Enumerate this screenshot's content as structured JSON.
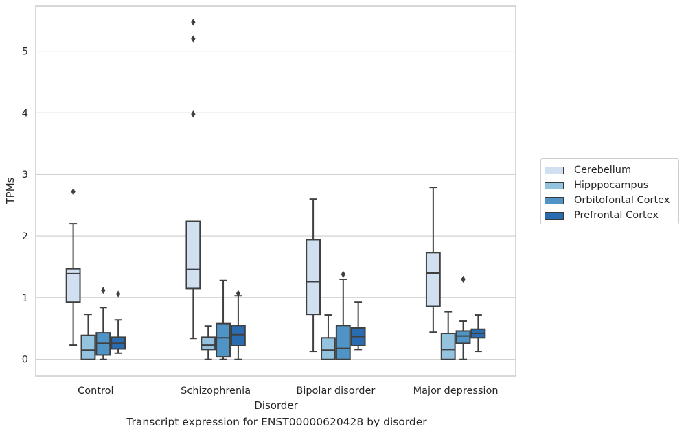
{
  "chart_data": {
    "type": "box",
    "title": "",
    "caption": "Transcript expression for ENST00000620428 by disorder",
    "xlabel": "Disorder",
    "ylabel": "TPMs",
    "ylim": [
      -0.27,
      5.73
    ],
    "yticks": [
      0,
      1,
      2,
      3,
      4,
      5
    ],
    "grid": "horizontal",
    "legend_position": "right",
    "categories": [
      "Control",
      "Schizophrenia",
      "Bipolar disorder",
      "Major depression"
    ],
    "series": [
      {
        "name": "Cerebellum",
        "color": "#d0e0f0",
        "boxes": [
          {
            "whislo": 0.23,
            "q1": 0.93,
            "med": 1.39,
            "q3": 1.47,
            "whishi": 2.2,
            "fliers": [
              2.72
            ]
          },
          {
            "whislo": 0.34,
            "q1": 1.15,
            "med": 1.46,
            "q3": 2.24,
            "whishi": 2.24,
            "fliers": [
              3.98,
              5.2,
              5.47
            ]
          },
          {
            "whislo": 0.13,
            "q1": 0.73,
            "med": 1.26,
            "q3": 1.94,
            "whishi": 2.6,
            "fliers": []
          },
          {
            "whislo": 0.44,
            "q1": 0.86,
            "med": 1.4,
            "q3": 1.73,
            "whishi": 2.79,
            "fliers": []
          }
        ]
      },
      {
        "name": "Hipppocampus",
        "color": "#93c3df",
        "boxes": [
          {
            "whislo": 0.0,
            "q1": 0.0,
            "med": 0.15,
            "q3": 0.39,
            "whishi": 0.73,
            "fliers": []
          },
          {
            "whislo": 0.0,
            "q1": 0.16,
            "med": 0.23,
            "q3": 0.36,
            "whishi": 0.54,
            "fliers": []
          },
          {
            "whislo": 0.0,
            "q1": 0.0,
            "med": 0.15,
            "q3": 0.35,
            "whishi": 0.72,
            "fliers": []
          },
          {
            "whislo": 0.0,
            "q1": 0.0,
            "med": 0.16,
            "q3": 0.42,
            "whishi": 0.77,
            "fliers": []
          }
        ]
      },
      {
        "name": "Orbitofontal Cortex",
        "color": "#5093c5",
        "boxes": [
          {
            "whislo": 0.0,
            "q1": 0.07,
            "med": 0.26,
            "q3": 0.43,
            "whishi": 0.84,
            "fliers": [
              1.12
            ]
          },
          {
            "whislo": 0.0,
            "q1": 0.04,
            "med": 0.35,
            "q3": 0.58,
            "whishi": 1.28,
            "fliers": []
          },
          {
            "whislo": 0.0,
            "q1": 0.0,
            "med": 0.18,
            "q3": 0.55,
            "whishi": 1.3,
            "fliers": [
              1.38
            ]
          },
          {
            "whislo": 0.0,
            "q1": 0.26,
            "med": 0.38,
            "q3": 0.46,
            "whishi": 0.62,
            "fliers": [
              1.3
            ]
          }
        ]
      },
      {
        "name": "Prefrontal Cortex",
        "color": "#2a6cb0",
        "boxes": [
          {
            "whislo": 0.1,
            "q1": 0.17,
            "med": 0.26,
            "q3": 0.36,
            "whishi": 0.64,
            "fliers": [
              1.06
            ]
          },
          {
            "whislo": 0.0,
            "q1": 0.22,
            "med": 0.4,
            "q3": 0.55,
            "whishi": 1.03,
            "fliers": [
              1.07
            ]
          },
          {
            "whislo": 0.16,
            "q1": 0.22,
            "med": 0.37,
            "q3": 0.51,
            "whishi": 0.93,
            "fliers": []
          },
          {
            "whislo": 0.13,
            "q1": 0.35,
            "med": 0.42,
            "q3": 0.49,
            "whishi": 0.72,
            "fliers": []
          }
        ]
      }
    ]
  }
}
